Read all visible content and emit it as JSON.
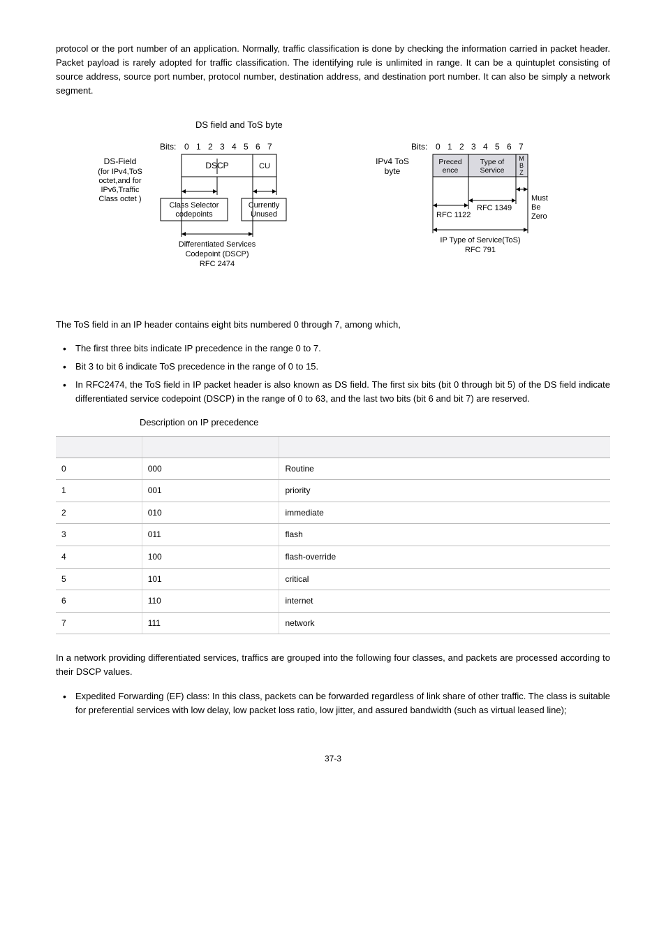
{
  "intro_para": "protocol or the port number of an application. Normally, traffic classification is done by checking the information carried in packet header. Packet payload is rarely adopted for traffic classification. The identifying rule is unlimited in range. It can be a quintuplet consisting of source address, source port number, protocol number, destination address, and destination port number. It can also be simply a network segment.",
  "fig_caption": "DS field and ToS byte",
  "diagram": {
    "left": {
      "bits_prefix": "Bits:",
      "bits": [
        "0",
        "1",
        "2",
        "3",
        "4",
        "5",
        "6",
        "7"
      ],
      "field_label_top": "DS-Field",
      "field_label_mid": "(for IPv4,ToS",
      "field_label_mid2": "octet,and for",
      "field_label_mid3": "IPv6,Traffic",
      "field_label_bot": "Class octet )",
      "dscp": "DSCP",
      "cu": "CU",
      "class_selector_l1": "Class Selector",
      "class_selector_l2": "codepoints",
      "currently_l1": "Currently",
      "currently_l2": "Unused",
      "diff_l1": "Differentiated Services",
      "diff_l2": "Codepoint (DSCP)",
      "diff_l3": "RFC 2474"
    },
    "right": {
      "bits_prefix": "Bits:",
      "bits": [
        "0",
        "1",
        "2",
        "3",
        "4",
        "5",
        "6",
        "7"
      ],
      "ipv4_l1": "IPv4 ToS",
      "ipv4_l2": "byte",
      "preced_l1": "Preced",
      "preced_l2": "ence",
      "tos_l1": "Type of",
      "tos_l2": "Service",
      "mbz_m": "M",
      "mbz_b": "B",
      "mbz_z": "Z",
      "rfc1122": "RFC 1122",
      "rfc1349": "RFC 1349",
      "must_l1": "Must",
      "must_l2": "Be",
      "must_l3": "Zero",
      "iptos_l1": "IP Type of Service(ToS)",
      "iptos_l2": "RFC 791"
    },
    "colors": {
      "stroke": "#000000",
      "fill_box": "#ffffff",
      "fill_grey": "#dadae0"
    }
  },
  "after_fig_para": "The ToS field in an IP header contains eight bits numbered 0 through 7, among which,",
  "bullets1": [
    "The first three bits indicate IP precedence in the range 0 to 7.",
    "Bit 3 to bit 6 indicate ToS precedence in the range of 0 to 15.",
    "In RFC2474, the ToS field in IP packet header is also known as DS field. The first six bits (bit 0 through bit 5) of the DS field indicate differentiated service codepoint (DSCP) in the range of 0 to 63, and the last two bits (bit 6 and bit 7) are reserved."
  ],
  "table_caption": "Description on IP precedence",
  "table": {
    "columns": [
      "",
      "",
      ""
    ],
    "rows": [
      [
        "0",
        "000",
        "Routine"
      ],
      [
        "1",
        "001",
        "priority"
      ],
      [
        "2",
        "010",
        "immediate"
      ],
      [
        "3",
        "011",
        "flash"
      ],
      [
        "4",
        "100",
        "flash-override"
      ],
      [
        "5",
        "101",
        "critical"
      ],
      [
        "6",
        "110",
        "internet"
      ],
      [
        "7",
        "111",
        "network"
      ]
    ]
  },
  "after_table_para": "In a network providing differentiated services, traffics are grouped into the following four classes, and packets are processed according to their DSCP values.",
  "bullets2": [
    "Expedited Forwarding (EF) class: In this class, packets can be forwarded regardless of link share of other traffic. The class is suitable for preferential services with low delay, low packet loss ratio, low jitter, and assured bandwidth (such as virtual leased line);"
  ],
  "page_number": "37-3"
}
